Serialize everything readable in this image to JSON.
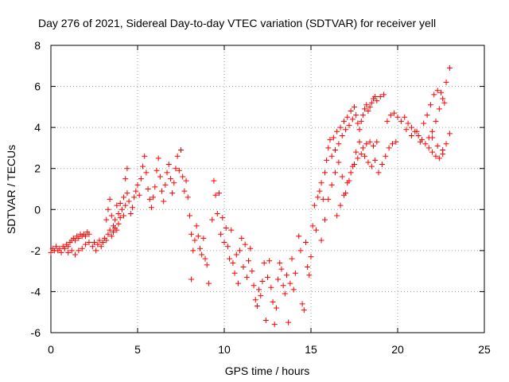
{
  "chart_data": {
    "type": "scatter",
    "title": "Day 276 of 2021, Sidereal Day-to-day VTEC variation (SDTVAR) for receiver yell",
    "xlabel": "GPS time / hours",
    "ylabel": "SDTVAR / TECUs",
    "xlim": [
      0,
      25
    ],
    "ylim": [
      -6,
      8
    ],
    "xticks": [
      "0",
      "5",
      "10",
      "15",
      "20",
      "25"
    ],
    "yticks": [
      "-6",
      "-4",
      "-2",
      "0",
      "2",
      "4",
      "6",
      "8"
    ],
    "grid": true,
    "marker": "+",
    "color": "#ff0000",
    "series": [
      {
        "name": "SDTVAR",
        "points": [
          [
            0.0,
            -2.1
          ],
          [
            0.1,
            -1.9
          ],
          [
            0.2,
            -2.0
          ],
          [
            0.3,
            -1.8
          ],
          [
            0.4,
            -2.0
          ],
          [
            0.5,
            -1.9
          ],
          [
            0.6,
            -2.1
          ],
          [
            0.7,
            -1.8
          ],
          [
            0.8,
            -1.9
          ],
          [
            0.9,
            -1.7
          ],
          [
            1.0,
            -1.8
          ],
          [
            1.1,
            -1.6
          ],
          [
            1.2,
            -1.5
          ],
          [
            1.3,
            -1.4
          ],
          [
            1.4,
            -1.5
          ],
          [
            1.5,
            -1.3
          ],
          [
            1.6,
            -1.4
          ],
          [
            1.7,
            -1.2
          ],
          [
            1.8,
            -1.3
          ],
          [
            1.9,
            -1.2
          ],
          [
            2.0,
            -1.3
          ],
          [
            2.1,
            -1.1
          ],
          [
            2.2,
            -1.2
          ],
          [
            1.0,
            -2.1
          ],
          [
            1.2,
            -2.0
          ],
          [
            1.4,
            -2.2
          ],
          [
            1.6,
            -2.0
          ],
          [
            1.8,
            -1.9
          ],
          [
            2.0,
            -1.7
          ],
          [
            2.2,
            -1.6
          ],
          [
            2.4,
            -1.8
          ],
          [
            2.5,
            -1.6
          ],
          [
            2.6,
            -2.0
          ],
          [
            2.7,
            -1.7
          ],
          [
            2.8,
            -1.5
          ],
          [
            2.9,
            -1.8
          ],
          [
            3.0,
            -1.6
          ],
          [
            3.1,
            -1.4
          ],
          [
            3.2,
            -1.5
          ],
          [
            3.3,
            -1.2
          ],
          [
            3.4,
            -1.0
          ],
          [
            3.2,
            -0.5
          ],
          [
            3.3,
            0.0
          ],
          [
            3.4,
            0.5
          ],
          [
            3.5,
            -0.3
          ],
          [
            3.6,
            -0.8
          ],
          [
            3.7,
            -0.5
          ],
          [
            3.8,
            0.2
          ],
          [
            3.9,
            -0.2
          ],
          [
            4.0,
            0.3
          ],
          [
            3.5,
            -1.3
          ],
          [
            3.6,
            -1.1
          ],
          [
            3.7,
            -0.9
          ],
          [
            3.8,
            -1.0
          ],
          [
            3.9,
            -0.7
          ],
          [
            4.0,
            -0.4
          ],
          [
            4.1,
            0.0
          ],
          [
            4.2,
            0.6
          ],
          [
            4.3,
            1.5
          ],
          [
            4.4,
            2.0
          ],
          [
            4.2,
            -0.3
          ],
          [
            4.3,
            0.2
          ],
          [
            4.4,
            0.8
          ],
          [
            4.5,
            0.4
          ],
          [
            4.6,
            -0.2
          ],
          [
            4.7,
            0.1
          ],
          [
            4.8,
            0.6
          ],
          [
            4.9,
            0.9
          ],
          [
            5.0,
            1.2
          ],
          [
            5.1,
            0.7
          ],
          [
            5.2,
            1.5
          ],
          [
            5.3,
            2.1
          ],
          [
            5.4,
            2.6
          ],
          [
            5.5,
            1.8
          ],
          [
            5.6,
            1.0
          ],
          [
            5.7,
            0.5
          ],
          [
            5.8,
            0.1
          ],
          [
            5.9,
            0.6
          ],
          [
            6.0,
            1.1
          ],
          [
            6.1,
            1.9
          ],
          [
            6.2,
            2.5
          ],
          [
            6.3,
            1.6
          ],
          [
            6.4,
            0.9
          ],
          [
            6.5,
            0.4
          ],
          [
            6.6,
            1.2
          ],
          [
            6.7,
            1.8
          ],
          [
            6.8,
            2.2
          ],
          [
            6.9,
            1.5
          ],
          [
            7.0,
            0.8
          ],
          [
            7.1,
            1.3
          ],
          [
            7.2,
            2.0
          ],
          [
            7.3,
            2.6
          ],
          [
            7.4,
            1.9
          ],
          [
            7.5,
            2.9
          ],
          [
            7.6,
            1.6
          ],
          [
            7.7,
            0.9
          ],
          [
            7.8,
            1.4
          ],
          [
            7.9,
            0.6
          ],
          [
            8.0,
            -0.3
          ],
          [
            8.1,
            -1.2
          ],
          [
            8.2,
            -2.0
          ],
          [
            8.3,
            -1.5
          ],
          [
            8.4,
            -0.8
          ],
          [
            8.5,
            -1.3
          ],
          [
            8.6,
            -1.9
          ],
          [
            8.7,
            -2.2
          ],
          [
            8.8,
            -1.4
          ],
          [
            8.9,
            -2.4
          ],
          [
            9.0,
            -2.7
          ],
          [
            9.1,
            -3.6
          ],
          [
            8.1,
            -3.4
          ],
          [
            9.3,
            -0.5
          ],
          [
            9.4,
            1.4
          ],
          [
            9.5,
            0.7
          ],
          [
            9.6,
            -0.2
          ],
          [
            9.7,
            0.8
          ],
          [
            9.8,
            -1.2
          ],
          [
            9.9,
            -0.4
          ],
          [
            10.0,
            -1.6
          ],
          [
            10.1,
            -0.9
          ],
          [
            10.2,
            -1.8
          ],
          [
            10.3,
            -2.4
          ],
          [
            10.4,
            -1.0
          ],
          [
            10.5,
            -2.6
          ],
          [
            10.6,
            -3.1
          ],
          [
            10.7,
            -2.2
          ],
          [
            10.8,
            -3.6
          ],
          [
            10.9,
            -2.0
          ],
          [
            11.0,
            -1.4
          ],
          [
            11.1,
            -2.8
          ],
          [
            11.2,
            -1.7
          ],
          [
            11.3,
            -3.3
          ],
          [
            11.4,
            -2.5
          ],
          [
            11.5,
            -1.9
          ],
          [
            11.6,
            -3.0
          ],
          [
            11.7,
            -3.7
          ],
          [
            11.8,
            -4.4
          ],
          [
            11.9,
            -4.7
          ],
          [
            12.0,
            -3.9
          ],
          [
            12.1,
            -4.2
          ],
          [
            12.2,
            -3.5
          ],
          [
            12.3,
            -2.6
          ],
          [
            12.4,
            -5.4
          ],
          [
            12.5,
            -3.3
          ],
          [
            12.6,
            -2.5
          ],
          [
            12.7,
            -3.8
          ],
          [
            12.8,
            -4.5
          ],
          [
            12.9,
            -5.6
          ],
          [
            13.0,
            -4.8
          ],
          [
            13.1,
            -3.4
          ],
          [
            13.2,
            -2.6
          ],
          [
            13.3,
            -2.9
          ],
          [
            13.4,
            -3.7
          ],
          [
            13.5,
            -4.1
          ],
          [
            13.6,
            -3.2
          ],
          [
            13.7,
            -5.5
          ],
          [
            13.8,
            -3.6
          ],
          [
            13.9,
            -2.4
          ],
          [
            14.0,
            -3.9
          ],
          [
            14.1,
            -3.1
          ],
          [
            14.3,
            -1.3
          ],
          [
            14.4,
            -2.0
          ],
          [
            14.5,
            -4.6
          ],
          [
            14.6,
            -4.9
          ],
          [
            14.7,
            -1.6
          ],
          [
            14.8,
            -2.8
          ],
          [
            14.9,
            -3.2
          ],
          [
            15.0,
            -2.3
          ],
          [
            15.1,
            -0.8
          ],
          [
            15.2,
            0.2
          ],
          [
            15.3,
            -1.0
          ],
          [
            15.4,
            0.6
          ],
          [
            15.5,
            0.9
          ],
          [
            15.6,
            1.3
          ],
          [
            15.7,
            0.5
          ],
          [
            15.8,
            1.8
          ],
          [
            15.9,
            2.4
          ],
          [
            16.0,
            3.0
          ],
          [
            16.1,
            3.4
          ],
          [
            16.2,
            2.6
          ],
          [
            16.3,
            3.5
          ],
          [
            16.4,
            2.9
          ],
          [
            16.5,
            3.8
          ],
          [
            16.6,
            3.2
          ],
          [
            16.7,
            4.0
          ],
          [
            16.8,
            3.6
          ],
          [
            16.9,
            4.3
          ],
          [
            17.0,
            3.9
          ],
          [
            17.1,
            4.5
          ],
          [
            17.2,
            4.1
          ],
          [
            17.3,
            4.8
          ],
          [
            17.4,
            4.4
          ],
          [
            17.5,
            5.0
          ],
          [
            17.6,
            4.6
          ],
          [
            17.7,
            4.2
          ],
          [
            17.8,
            3.9
          ],
          [
            17.9,
            4.3
          ],
          [
            18.0,
            4.6
          ],
          [
            18.1,
            4.9
          ],
          [
            18.2,
            5.1
          ],
          [
            18.3,
            4.8
          ],
          [
            18.4,
            5.0
          ],
          [
            18.5,
            5.2
          ],
          [
            18.6,
            5.4
          ],
          [
            18.7,
            5.5
          ],
          [
            18.8,
            5.3
          ],
          [
            19.0,
            5.5
          ],
          [
            19.2,
            5.6
          ],
          [
            15.6,
            -1.5
          ],
          [
            15.8,
            -0.5
          ],
          [
            16.0,
            0.5
          ],
          [
            16.2,
            1.2
          ],
          [
            16.4,
            1.8
          ],
          [
            16.6,
            2.3
          ],
          [
            16.8,
            1.6
          ],
          [
            17.0,
            0.8
          ],
          [
            17.2,
            1.4
          ],
          [
            17.4,
            2.1
          ],
          [
            17.6,
            2.8
          ],
          [
            17.8,
            3.3
          ],
          [
            18.0,
            3.0
          ],
          [
            18.2,
            3.2
          ],
          [
            18.4,
            3.3
          ],
          [
            18.6,
            3.1
          ],
          [
            18.8,
            3.3
          ],
          [
            16.5,
            -0.3
          ],
          [
            16.7,
            0.2
          ],
          [
            16.9,
            0.7
          ],
          [
            17.1,
            1.3
          ],
          [
            17.3,
            1.8
          ],
          [
            17.5,
            2.2
          ],
          [
            17.7,
            2.5
          ],
          [
            17.9,
            2.7
          ],
          [
            18.1,
            2.6
          ],
          [
            18.3,
            2.3
          ],
          [
            18.5,
            2.1
          ],
          [
            18.7,
            2.4
          ],
          [
            18.9,
            1.8
          ],
          [
            19.1,
            2.2
          ],
          [
            19.3,
            2.6
          ],
          [
            19.5,
            3.0
          ],
          [
            19.7,
            3.2
          ],
          [
            19.9,
            3.3
          ],
          [
            19.4,
            4.3
          ],
          [
            19.6,
            4.6
          ],
          [
            19.8,
            4.7
          ],
          [
            20.0,
            4.5
          ],
          [
            20.2,
            4.3
          ],
          [
            20.4,
            4.5
          ],
          [
            20.6,
            4.2
          ],
          [
            20.8,
            4.0
          ],
          [
            21.0,
            3.8
          ],
          [
            21.2,
            3.6
          ],
          [
            21.4,
            3.4
          ],
          [
            21.6,
            3.2
          ],
          [
            21.8,
            3.0
          ],
          [
            22.0,
            2.8
          ],
          [
            22.2,
            2.6
          ],
          [
            22.4,
            2.5
          ],
          [
            22.6,
            2.7
          ],
          [
            22.8,
            3.2
          ],
          [
            23.0,
            3.7
          ],
          [
            21.8,
            3.5
          ],
          [
            22.0,
            3.8
          ],
          [
            22.2,
            4.3
          ],
          [
            22.4,
            4.9
          ],
          [
            22.6,
            5.4
          ],
          [
            22.8,
            6.2
          ],
          [
            23.0,
            6.9
          ],
          [
            21.5,
            4.2
          ],
          [
            21.7,
            4.6
          ],
          [
            21.9,
            5.1
          ],
          [
            22.1,
            5.6
          ],
          [
            22.3,
            5.8
          ],
          [
            22.5,
            5.7
          ],
          [
            22.7,
            5.2
          ],
          [
            20.5,
            3.9
          ],
          [
            20.8,
            3.6
          ],
          [
            21.1,
            3.8
          ],
          [
            21.3,
            3.3
          ],
          [
            22.0,
            3.5
          ],
          [
            22.3,
            3.1
          ],
          [
            22.6,
            2.9
          ]
        ]
      }
    ]
  }
}
